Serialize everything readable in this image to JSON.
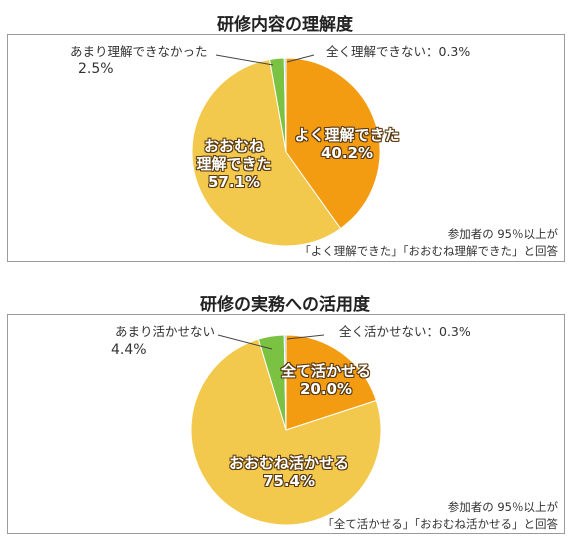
{
  "chart_data": [
    {
      "type": "pie",
      "title": "研修内容の理解度",
      "slices": [
        {
          "label": "よく理解できた",
          "value": 40.2,
          "pct_text": "40.2%",
          "color": "#f39c12"
        },
        {
          "label": "おおむね理解できた",
          "label_lines": [
            "おおむね",
            "理解できた"
          ],
          "value": 57.1,
          "pct_text": "57.1%",
          "color": "#f2c94c"
        },
        {
          "label": "あまり理解できなかった",
          "value": 2.5,
          "pct_text": "2.5%",
          "color": "#7cc242"
        },
        {
          "label": "全く理解できない：0.3%",
          "value": 0.3,
          "pct_text": "0.3%",
          "color": "#9bbfe0"
        }
      ],
      "note": [
        "参加者の 95％以上が",
        "「よく理解できた」「おおむね理解できた」と回答"
      ]
    },
    {
      "type": "pie",
      "title": "研修の実務への活用度",
      "slices": [
        {
          "label": "全て活かせる",
          "value": 20.0,
          "pct_text": "20.0%",
          "color": "#f39c12"
        },
        {
          "label": "おおむね活かせる",
          "value": 75.4,
          "pct_text": "75.4%",
          "color": "#f2c94c"
        },
        {
          "label": "あまり活かせない",
          "value": 4.4,
          "pct_text": "4.4%",
          "color": "#7cc242"
        },
        {
          "label": "全く活かせない：0.3%",
          "value": 0.3,
          "pct_text": "0.3%",
          "color": "#9bbfe0"
        }
      ],
      "note": [
        "参加者の 95％以上が",
        "「全て活かせる」「おおむね活かせる」と回答"
      ]
    }
  ]
}
